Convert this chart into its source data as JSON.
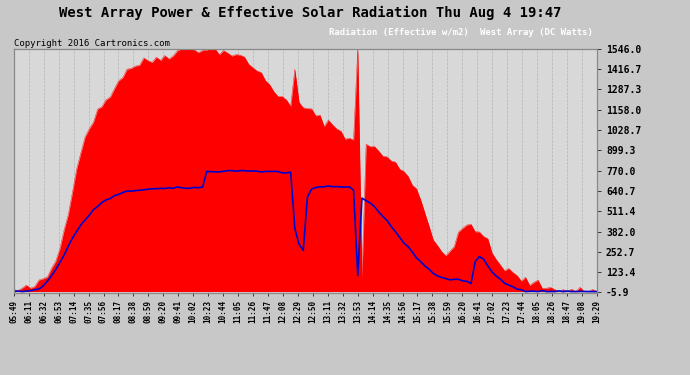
{
  "title": "West Array Power & Effective Solar Radiation Thu Aug 4 19:47",
  "copyright": "Copyright 2016 Cartronics.com",
  "legend_radiation": "Radiation (Effective w/m2)",
  "legend_west": "West Array (DC Watts)",
  "bg_color": "#c8c8c8",
  "plot_bg_color": "#d8d8d8",
  "grid_color": "#aaaaaa",
  "title_color": "#000000",
  "tick_color": "#000000",
  "right_yticks": [
    1546.0,
    1416.7,
    1287.3,
    1158.0,
    1028.7,
    899.3,
    770.0,
    640.7,
    511.4,
    382.0,
    252.7,
    123.4,
    -5.9
  ],
  "ymin": -5.9,
  "ymax": 1546.0,
  "xtick_labels": [
    "05:49",
    "06:11",
    "06:32",
    "06:53",
    "07:14",
    "07:35",
    "07:56",
    "08:17",
    "08:38",
    "08:59",
    "09:20",
    "09:41",
    "10:02",
    "10:23",
    "10:44",
    "11:05",
    "11:26",
    "11:47",
    "12:08",
    "12:29",
    "12:50",
    "13:11",
    "13:32",
    "13:53",
    "14:14",
    "14:35",
    "14:56",
    "15:17",
    "15:38",
    "15:59",
    "16:20",
    "16:41",
    "17:02",
    "17:23",
    "17:44",
    "18:05",
    "18:26",
    "18:47",
    "19:08",
    "19:29"
  ],
  "radiation_color": "#0000cc",
  "west_array_color": "#ff0000",
  "west_fill_color": "#ff0000",
  "west_array_values": [
    5,
    8,
    12,
    18,
    25,
    35,
    50,
    70,
    100,
    140,
    200,
    280,
    390,
    520,
    660,
    790,
    900,
    980,
    1050,
    1100,
    1140,
    1180,
    1220,
    1260,
    1300,
    1340,
    1380,
    1410,
    1430,
    1440,
    1450,
    1460,
    1470,
    1475,
    1480,
    1490,
    1500,
    1510,
    1520,
    1530,
    1540,
    1543,
    1546,
    1544,
    1543,
    1546,
    1545,
    1544,
    1540,
    1535,
    1530,
    1525,
    1510,
    1500,
    1490,
    1480,
    1460,
    1430,
    1400,
    1380,
    1350,
    1320,
    1290,
    1260,
    1230,
    1200,
    1180,
    1400,
    1200,
    1180,
    1160,
    1140,
    1120,
    1100,
    1090,
    1080,
    1060,
    1040,
    1020,
    1000,
    980,
    960,
    1546,
    100,
    950,
    930,
    910,
    890,
    870,
    850,
    830,
    810,
    790,
    770,
    740,
    700,
    650,
    580,
    500,
    420,
    350,
    300,
    260,
    240,
    260,
    280,
    350,
    400,
    420,
    430,
    410,
    380,
    350,
    300,
    250,
    200,
    170,
    150,
    130,
    110,
    90,
    80,
    70,
    60,
    50,
    40,
    35,
    30,
    25,
    20,
    15,
    12,
    10,
    8,
    6,
    4,
    3,
    2,
    1,
    0
  ],
  "radiation_values": [
    0,
    0,
    0,
    2,
    5,
    10,
    20,
    40,
    65,
    100,
    140,
    185,
    235,
    290,
    340,
    385,
    420,
    455,
    490,
    520,
    545,
    565,
    580,
    595,
    608,
    618,
    628,
    635,
    640,
    645,
    648,
    650,
    652,
    653,
    654,
    655,
    656,
    657,
    658,
    658,
    659,
    660,
    661,
    662,
    662,
    663,
    763,
    764,
    765,
    766,
    767,
    768,
    769,
    770,
    770,
    770,
    769,
    768,
    766,
    765,
    764,
    763,
    762,
    761,
    760,
    759,
    758,
    400,
    300,
    250,
    600,
    650,
    660,
    665,
    668,
    670,
    670,
    669,
    668,
    665,
    660,
    650,
    100,
    600,
    580,
    560,
    540,
    510,
    480,
    450,
    415,
    380,
    345,
    310,
    280,
    250,
    220,
    190,
    165,
    140,
    118,
    100,
    88,
    80,
    78,
    79,
    80,
    70,
    60,
    50,
    195,
    220,
    200,
    160,
    130,
    100,
    75,
    55,
    40,
    28,
    18,
    12,
    8,
    5,
    3,
    2,
    1,
    0,
    0,
    0,
    0,
    0,
    0,
    0,
    0,
    0,
    0,
    0,
    0,
    0
  ]
}
